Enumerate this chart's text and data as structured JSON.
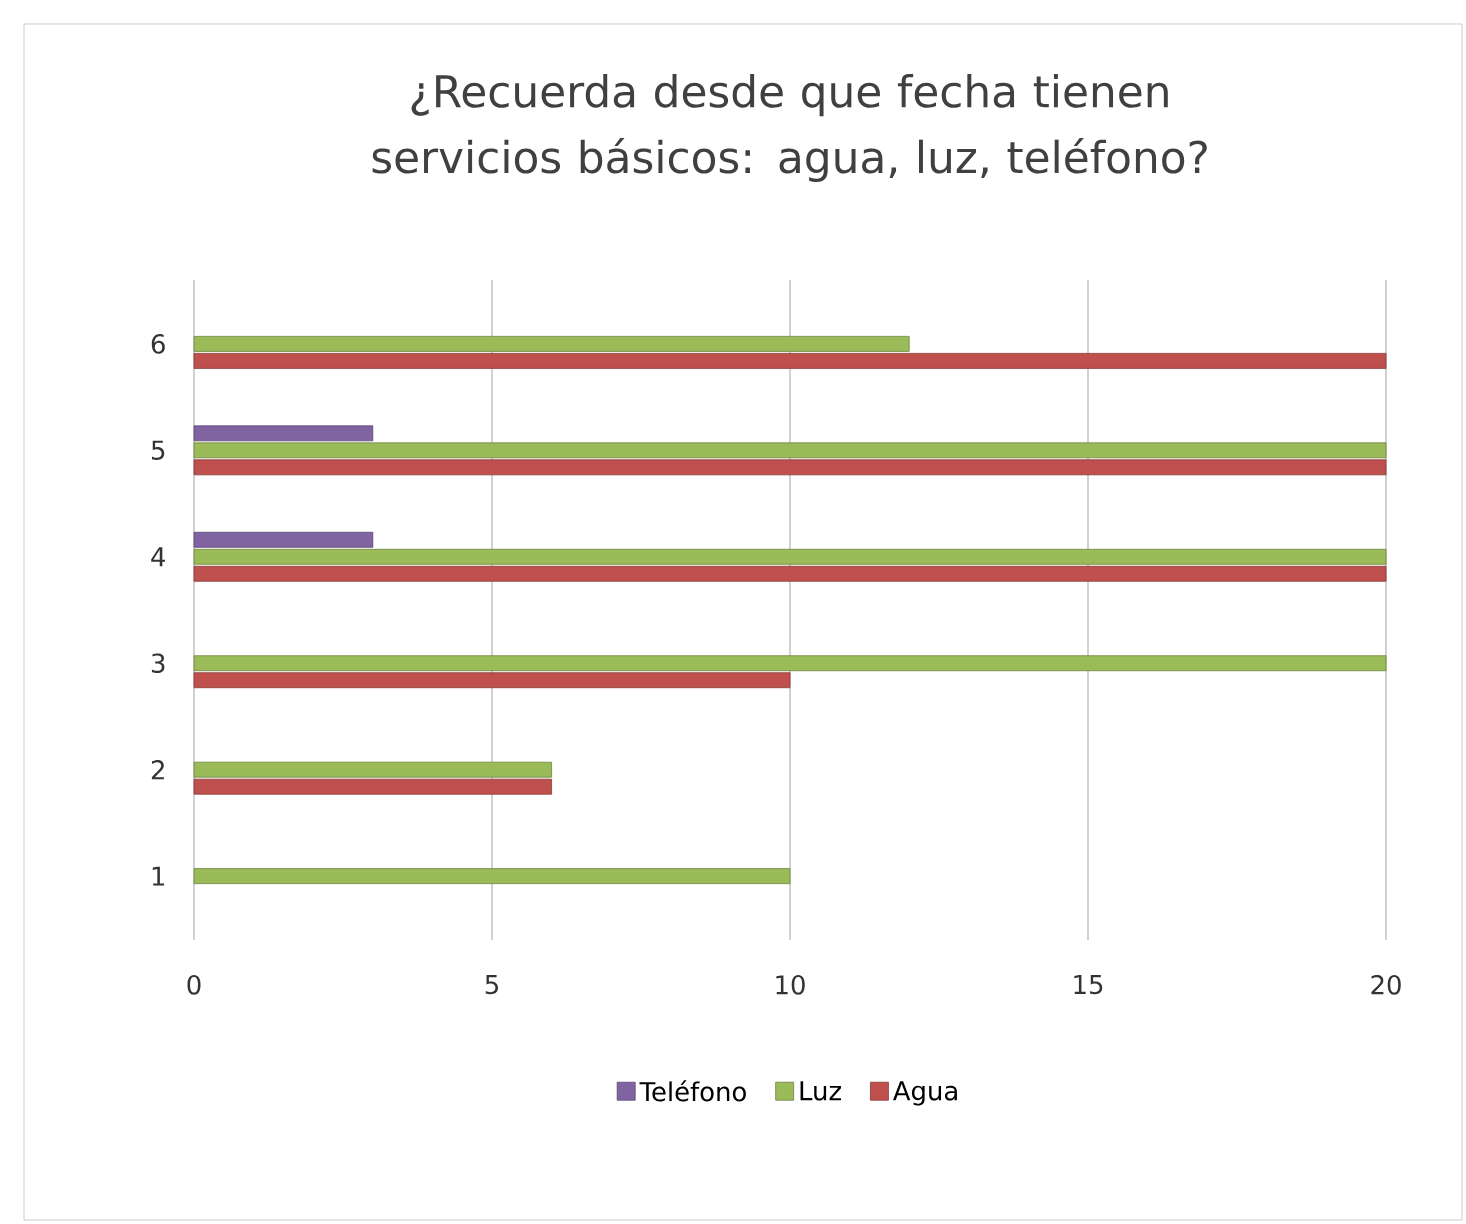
{
  "chart_data": {
    "type": "bar",
    "orientation": "horizontal",
    "title": "¿Recuerda desde que fecha tienen servicios básicos: agua, luz, teléfono?",
    "categories": [
      "6",
      "5",
      "4",
      "3",
      "2",
      "1"
    ],
    "series": [
      {
        "name": "Teléfono",
        "color": "#8064a2",
        "values": [
          null,
          3,
          3,
          null,
          null,
          null
        ]
      },
      {
        "name": "Luz",
        "color": "#9bbb59",
        "values": [
          12,
          20,
          20,
          20,
          6,
          10
        ]
      },
      {
        "name": "Agua",
        "color": "#c0504d",
        "values": [
          20,
          20,
          20,
          10,
          6,
          null
        ]
      }
    ],
    "xlim": [
      0,
      20
    ],
    "xticks": [
      0,
      5,
      10,
      15,
      20
    ],
    "grid": "x",
    "legend": "bottom"
  }
}
